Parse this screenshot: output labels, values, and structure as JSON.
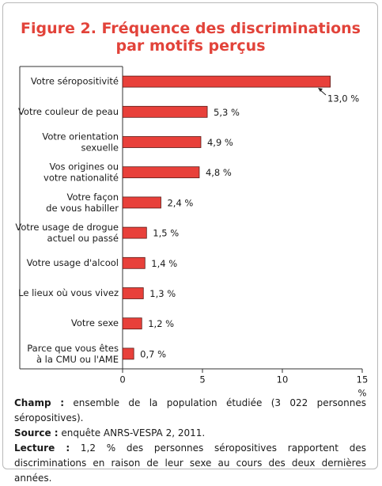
{
  "chart_data": {
    "type": "hbar",
    "title": "Figure 2. Fréquence des discriminations\npar motifs perçus",
    "categories": [
      "Votre séropositivité",
      "Votre couleur de peau",
      "Votre orientation\nsexuelle",
      "Vos origines ou\nvotre nationalité",
      "Votre façon\nde vous habiller",
      "Votre usage de drogue\nactuel ou passé",
      "Votre usage d'alcool",
      "Le lieux où vous vivez",
      "Votre sexe",
      "Parce que vous êtes\nà la CMU ou l'AME"
    ],
    "values": [
      13.0,
      5.3,
      4.9,
      4.8,
      2.4,
      1.5,
      1.4,
      1.3,
      1.2,
      0.7
    ],
    "value_labels": [
      "13,0 %",
      "5,3 %",
      "4,9 %",
      "4,8 %",
      "2,4 %",
      "1,5 %",
      "1,4 %",
      "1,3 %",
      "1,2 %",
      "0,7 %"
    ],
    "color": "#e8403a",
    "xlim": [
      0,
      15
    ],
    "xticks": [
      0,
      5,
      10,
      15
    ],
    "x_label": "%"
  },
  "notes": [
    {
      "label": "Champ :",
      "text": "ensemble de la population étudiée (3 022 personnes séropositives)."
    },
    {
      "label": "Source :",
      "text": "enquête ANRS-VESPA 2, 2011."
    },
    {
      "label": "Lecture :",
      "text": "1,2 % des personnes séropositives rapportent des discriminations en raison de leur sexe au cours des deux dernières années."
    }
  ]
}
